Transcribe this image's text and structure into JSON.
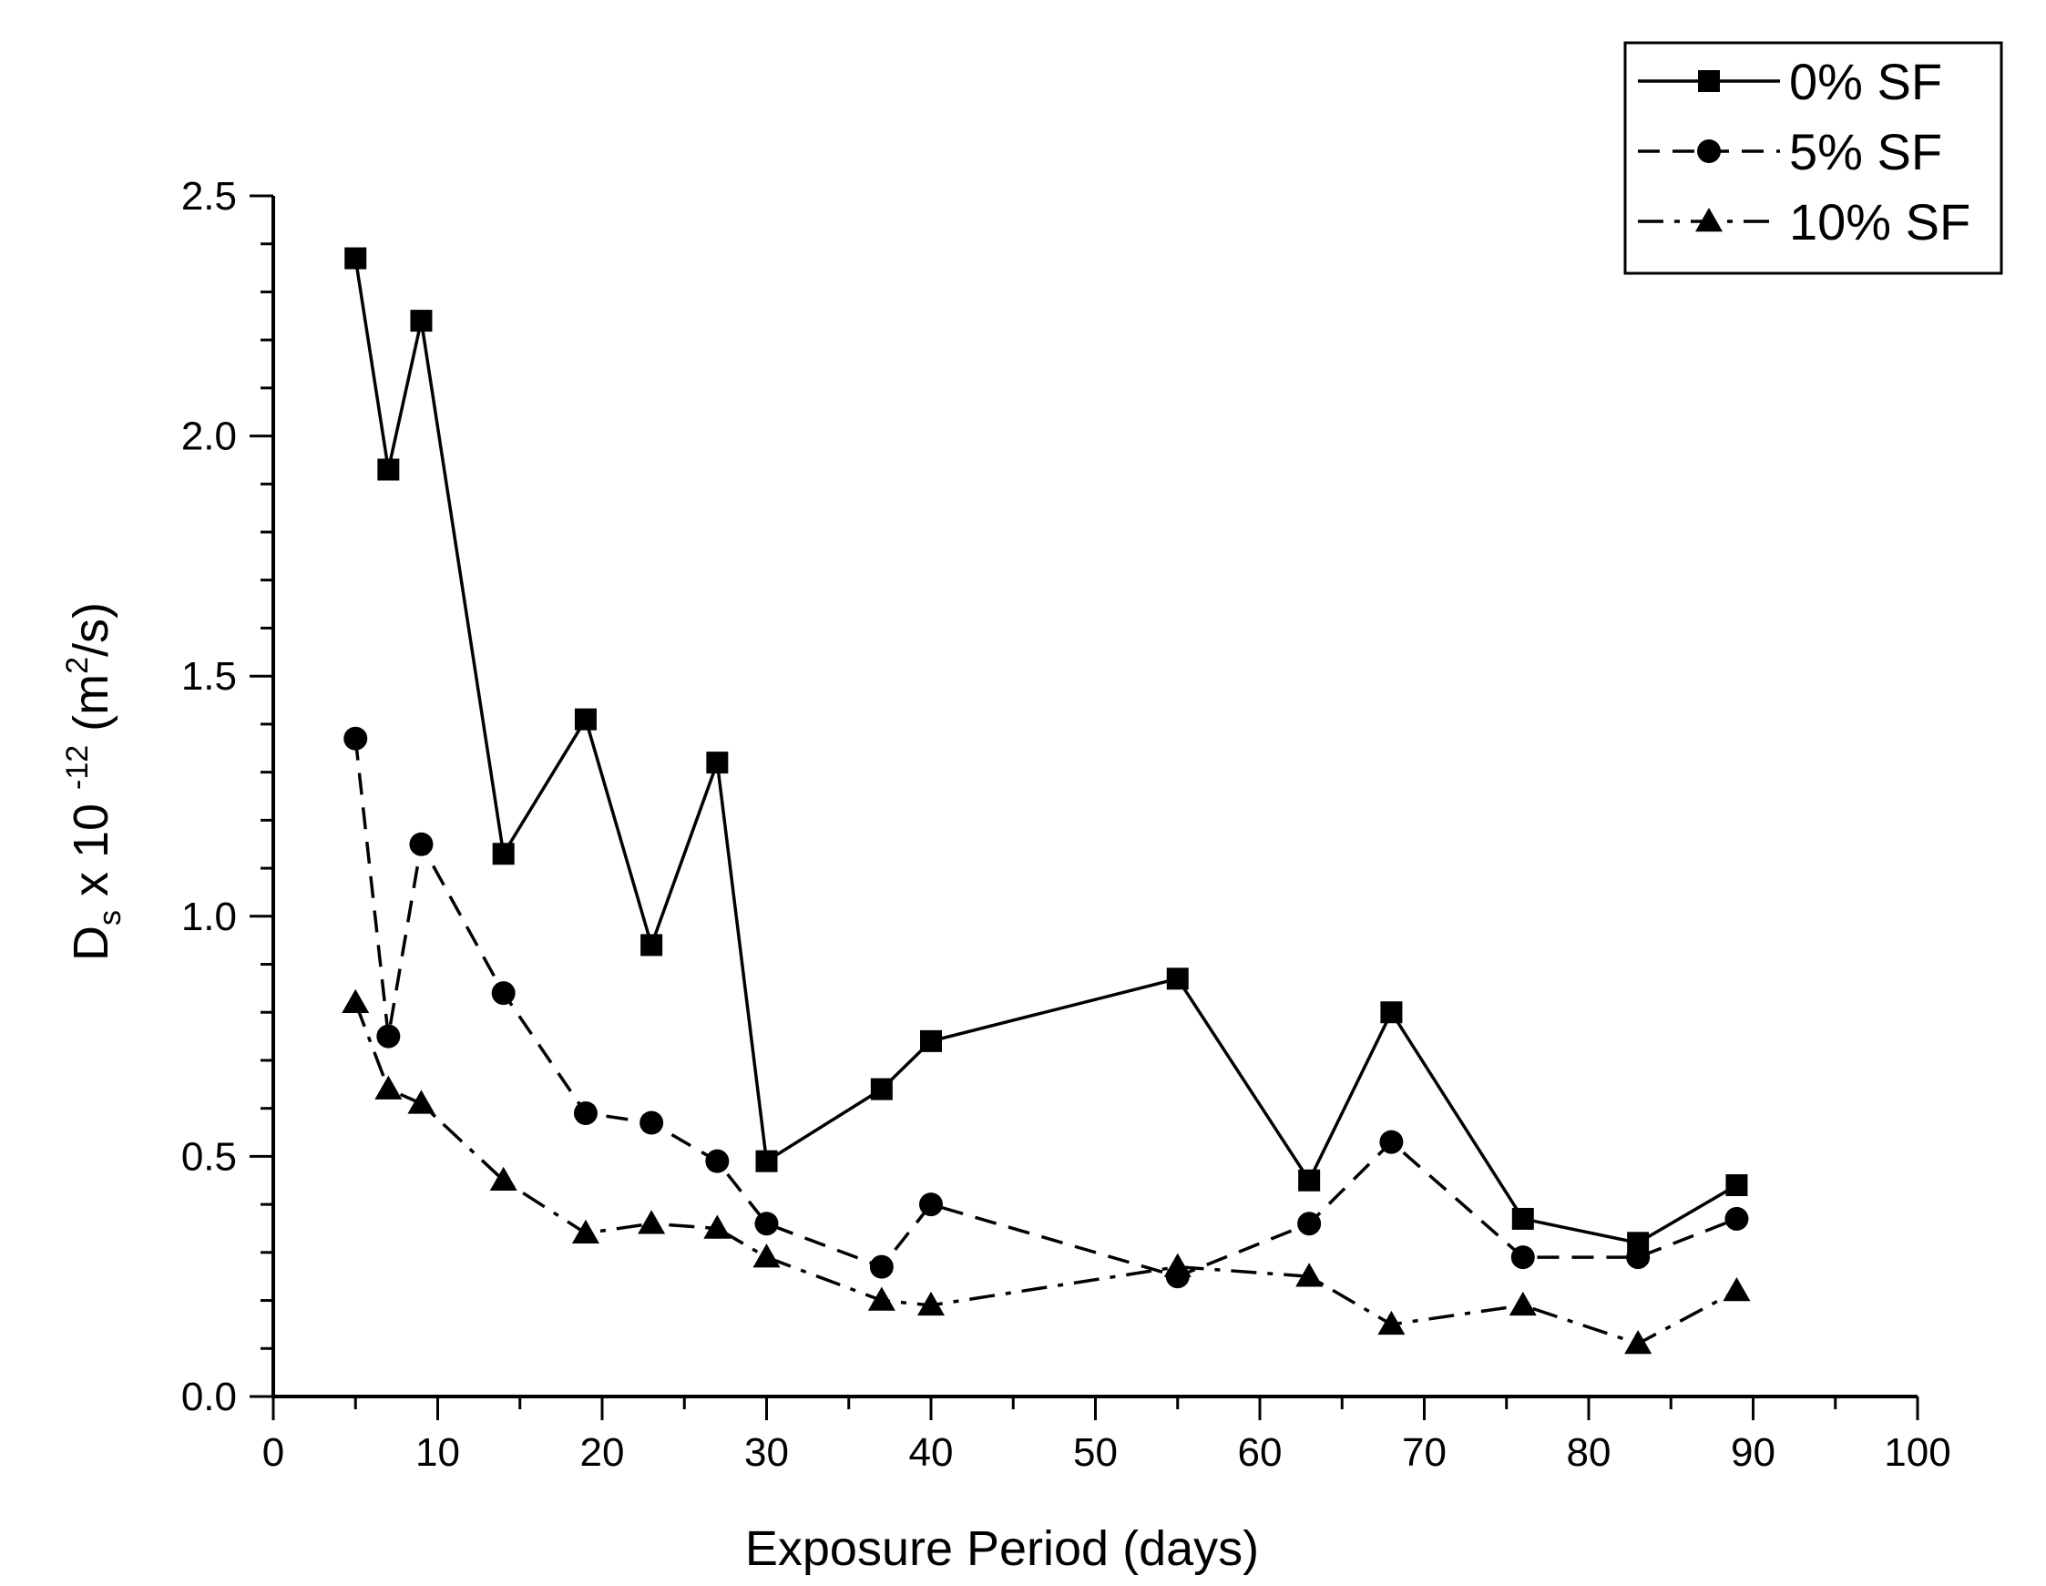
{
  "chart_data": {
    "type": "line",
    "title": "",
    "xlabel": "Exposure Period (days)",
    "ylabel": {
      "base": "D",
      "sub": "s",
      "mid": " x 10 ",
      "exp": "-12",
      "unit_open": " (m",
      "unit_exp": "2",
      "unit_close": "/s)"
    },
    "xlim": [
      0,
      100
    ],
    "ylim": [
      0.0,
      2.5
    ],
    "xticks": [
      "0",
      "10",
      "20",
      "30",
      "40",
      "50",
      "60",
      "70",
      "80",
      "90",
      "100"
    ],
    "yticks": [
      "0.0",
      "0.5",
      "1.0",
      "1.5",
      "2.0",
      "2.5"
    ],
    "grid": false,
    "legend_position": "top-right",
    "x": [
      5,
      7,
      9,
      14,
      19,
      23,
      27,
      30,
      37,
      40,
      55,
      63,
      68,
      76,
      83,
      89
    ],
    "series": [
      {
        "name": "0% SF",
        "marker": "square",
        "line": "solid",
        "values": [
          2.37,
          1.93,
          2.24,
          1.13,
          1.41,
          0.94,
          1.32,
          0.49,
          0.64,
          0.74,
          0.87,
          0.45,
          0.8,
          0.37,
          0.32,
          0.44
        ]
      },
      {
        "name": "5% SF",
        "marker": "circle",
        "line": "dash",
        "values": [
          1.37,
          0.75,
          1.15,
          0.84,
          0.59,
          0.57,
          0.49,
          0.36,
          0.27,
          0.4,
          0.25,
          0.36,
          0.53,
          0.29,
          0.29,
          0.37
        ]
      },
      {
        "name": "10% SF",
        "marker": "triangle",
        "line": "dashdot",
        "values": [
          0.82,
          0.64,
          0.61,
          0.45,
          0.34,
          0.36,
          0.35,
          0.29,
          0.2,
          0.19,
          0.27,
          0.25,
          0.15,
          0.19,
          0.11,
          0.22
        ]
      }
    ]
  }
}
